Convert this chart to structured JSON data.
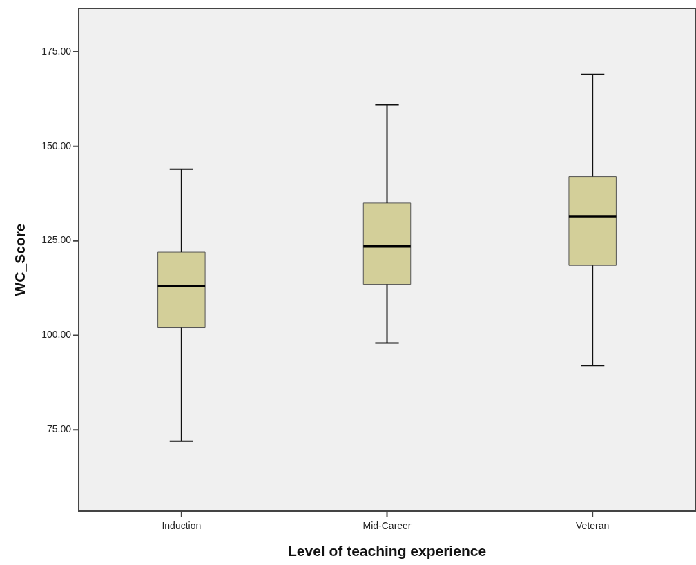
{
  "chart_data": {
    "type": "box",
    "xlabel": "Level of teaching experience",
    "ylabel": "WC_Score",
    "categories": [
      "Induction",
      "Mid-Career",
      "Veteran"
    ],
    "color": "#d3cf99",
    "boxes": [
      {
        "low": 72,
        "q1": 102,
        "median": 113,
        "q3": 122,
        "high": 144
      },
      {
        "low": 98,
        "q1": 113.5,
        "median": 123.5,
        "q3": 135,
        "high": 161
      },
      {
        "low": 92,
        "q1": 118.5,
        "median": 131.5,
        "q3": 142,
        "high": 169
      }
    ],
    "ylim": [
      53.5,
      186.5
    ],
    "yticks": [
      {
        "value": 75,
        "label": "75.00"
      },
      {
        "value": 100,
        "label": "100.00"
      },
      {
        "value": 125,
        "label": "125.00"
      },
      {
        "value": 150,
        "label": "150.00"
      },
      {
        "value": 175,
        "label": "175.00"
      }
    ]
  }
}
